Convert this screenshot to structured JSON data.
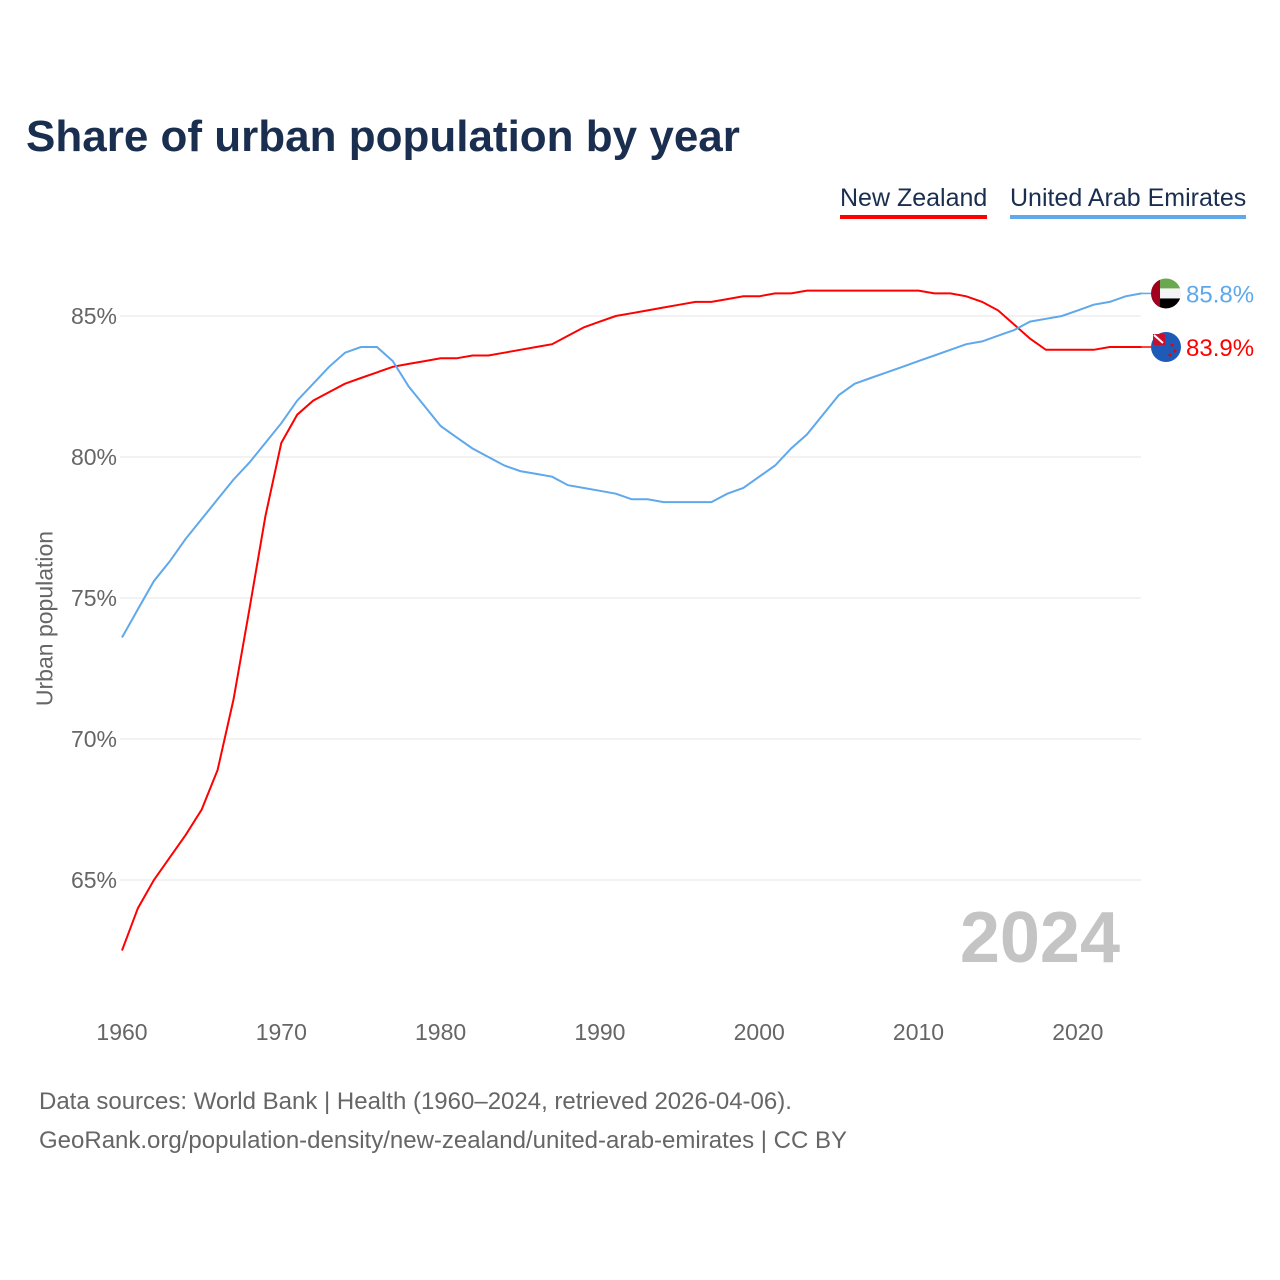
{
  "title": "Share of urban population by year",
  "legend": [
    "New Zealand",
    "United Arab Emirates"
  ],
  "year_watermark": "2024",
  "source_line1": "Data sources: World Bank | Health (1960–2024, retrieved 2026-04-06).",
  "source_line2": "GeoRank.org/population-density/new-zealand/united-arab-emirates | CC BY",
  "chart_data": {
    "type": "line",
    "title": "Share of urban population by year",
    "xlabel": "",
    "ylabel": "Urban population",
    "xlim": [
      1960,
      2024
    ],
    "ylim": [
      62,
      87.5
    ],
    "x_ticks": [
      1960,
      1970,
      1980,
      1990,
      2000,
      2010,
      2020
    ],
    "y_ticks": [
      65,
      70,
      75,
      80,
      85
    ],
    "y_tick_labels": [
      "65%",
      "70%",
      "75%",
      "80%",
      "85%"
    ],
    "grid": true,
    "legend_position": "top-right",
    "x_start": 1960,
    "series": [
      {
        "name": "New Zealand",
        "color": "#ff0000",
        "end_label": "83.9%",
        "flag": "nz-flag",
        "values": [
          62.5,
          64.0,
          65.0,
          65.8,
          66.6,
          67.5,
          68.9,
          71.4,
          74.6,
          77.9,
          80.5,
          81.5,
          82.0,
          82.3,
          82.6,
          82.8,
          83.0,
          83.2,
          83.3,
          83.4,
          83.5,
          83.5,
          83.6,
          83.6,
          83.7,
          83.8,
          83.9,
          84.0,
          84.3,
          84.6,
          84.8,
          85.0,
          85.1,
          85.2,
          85.3,
          85.4,
          85.5,
          85.5,
          85.6,
          85.7,
          85.7,
          85.8,
          85.8,
          85.9,
          85.9,
          85.9,
          85.9,
          85.9,
          85.9,
          85.9,
          85.9,
          85.8,
          85.8,
          85.7,
          85.5,
          85.2,
          84.7,
          84.2,
          83.8,
          83.8,
          83.8,
          83.8,
          83.9,
          83.9,
          83.9
        ]
      },
      {
        "name": "United Arab Emirates",
        "color": "#5fa8eb",
        "end_label": "85.8%",
        "flag": "uae-flag",
        "values": [
          73.6,
          74.6,
          75.6,
          76.3,
          77.1,
          77.8,
          78.5,
          79.2,
          79.8,
          80.5,
          81.2,
          82.0,
          82.6,
          83.2,
          83.7,
          83.9,
          83.9,
          83.4,
          82.5,
          81.8,
          81.1,
          80.7,
          80.3,
          80.0,
          79.7,
          79.5,
          79.4,
          79.3,
          79.0,
          78.9,
          78.8,
          78.7,
          78.5,
          78.5,
          78.4,
          78.4,
          78.4,
          78.4,
          78.7,
          78.9,
          79.3,
          79.7,
          80.3,
          80.8,
          81.5,
          82.2,
          82.6,
          82.8,
          83.0,
          83.2,
          83.4,
          83.6,
          83.8,
          84.0,
          84.1,
          84.3,
          84.5,
          84.8,
          84.9,
          85.0,
          85.2,
          85.4,
          85.5,
          85.7,
          85.8
        ]
      }
    ]
  }
}
